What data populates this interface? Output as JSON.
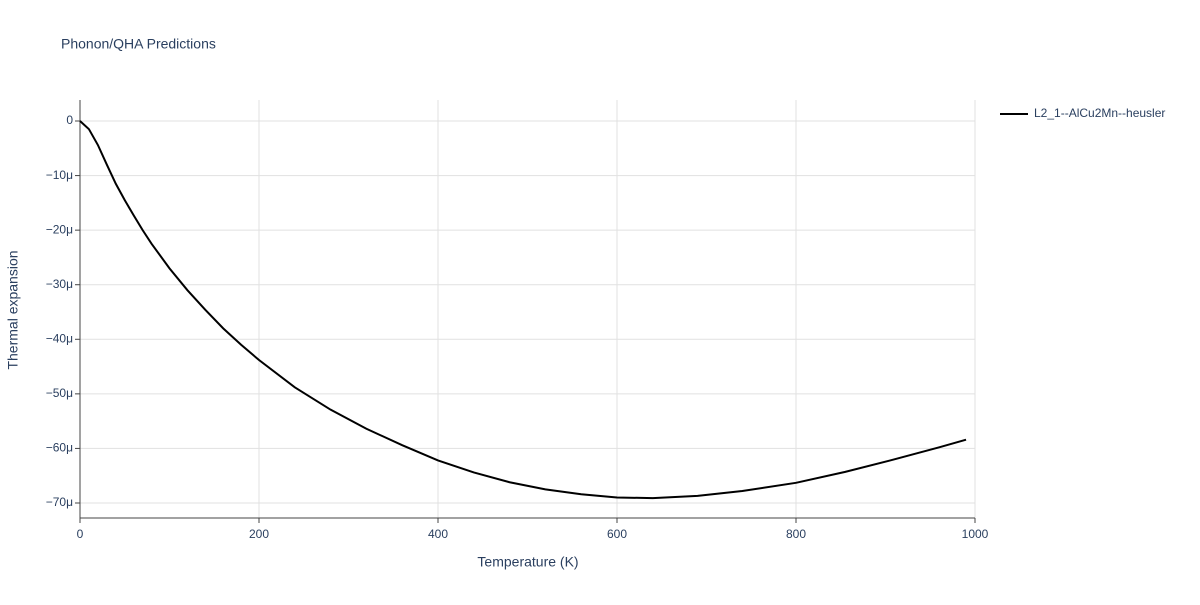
{
  "chart_data": {
    "type": "line",
    "title": "Phonon/QHA Predictions",
    "x_label": "Temperature (K)",
    "y_label": "Thermal expansion",
    "x": [
      0,
      10,
      20,
      30,
      40,
      50,
      60,
      70,
      80,
      100,
      120,
      140,
      160,
      180,
      200,
      240,
      280,
      320,
      360,
      400,
      440,
      480,
      520,
      560,
      600,
      640,
      690,
      740,
      800,
      855,
      910,
      960,
      990
    ],
    "series": [
      {
        "name": "L2_1--AlCu2Mn--heusler",
        "color": "#000000",
        "values": [
          0,
          -1.5e-06,
          -4.4e-06,
          -8e-06,
          -1.15e-05,
          -1.45e-05,
          -1.73e-05,
          -2e-05,
          -2.25e-05,
          -2.7e-05,
          -3.1e-05,
          -3.46e-05,
          -3.8e-05,
          -4.1e-05,
          -4.38e-05,
          -4.88e-05,
          -5.29e-05,
          -5.64e-05,
          -5.94e-05,
          -6.22e-05,
          -6.44e-05,
          -6.62e-05,
          -6.75e-05,
          -6.84e-05,
          -6.9e-05,
          -6.91e-05,
          -6.87e-05,
          -6.78e-05,
          -6.63e-05,
          -6.43e-05,
          -6.2e-05,
          -5.98e-05,
          -5.84e-05
        ]
      }
    ],
    "xlim": [
      0,
      1000
    ],
    "xticks": [
      0,
      200,
      400,
      600,
      800,
      1000
    ],
    "ylim": [
      -7.275e-05,
      3.85e-06
    ],
    "yticks": [
      {
        "value": -7e-05,
        "label": "−70μ"
      },
      {
        "value": -6e-05,
        "label": "−60μ"
      },
      {
        "value": -5e-05,
        "label": "−50μ"
      },
      {
        "value": -4e-05,
        "label": "−40μ"
      },
      {
        "value": -3e-05,
        "label": "−30μ"
      },
      {
        "value": -2e-05,
        "label": "−20μ"
      },
      {
        "value": -1e-05,
        "label": "−10μ"
      },
      0
    ],
    "grid": true,
    "legend": "right"
  }
}
